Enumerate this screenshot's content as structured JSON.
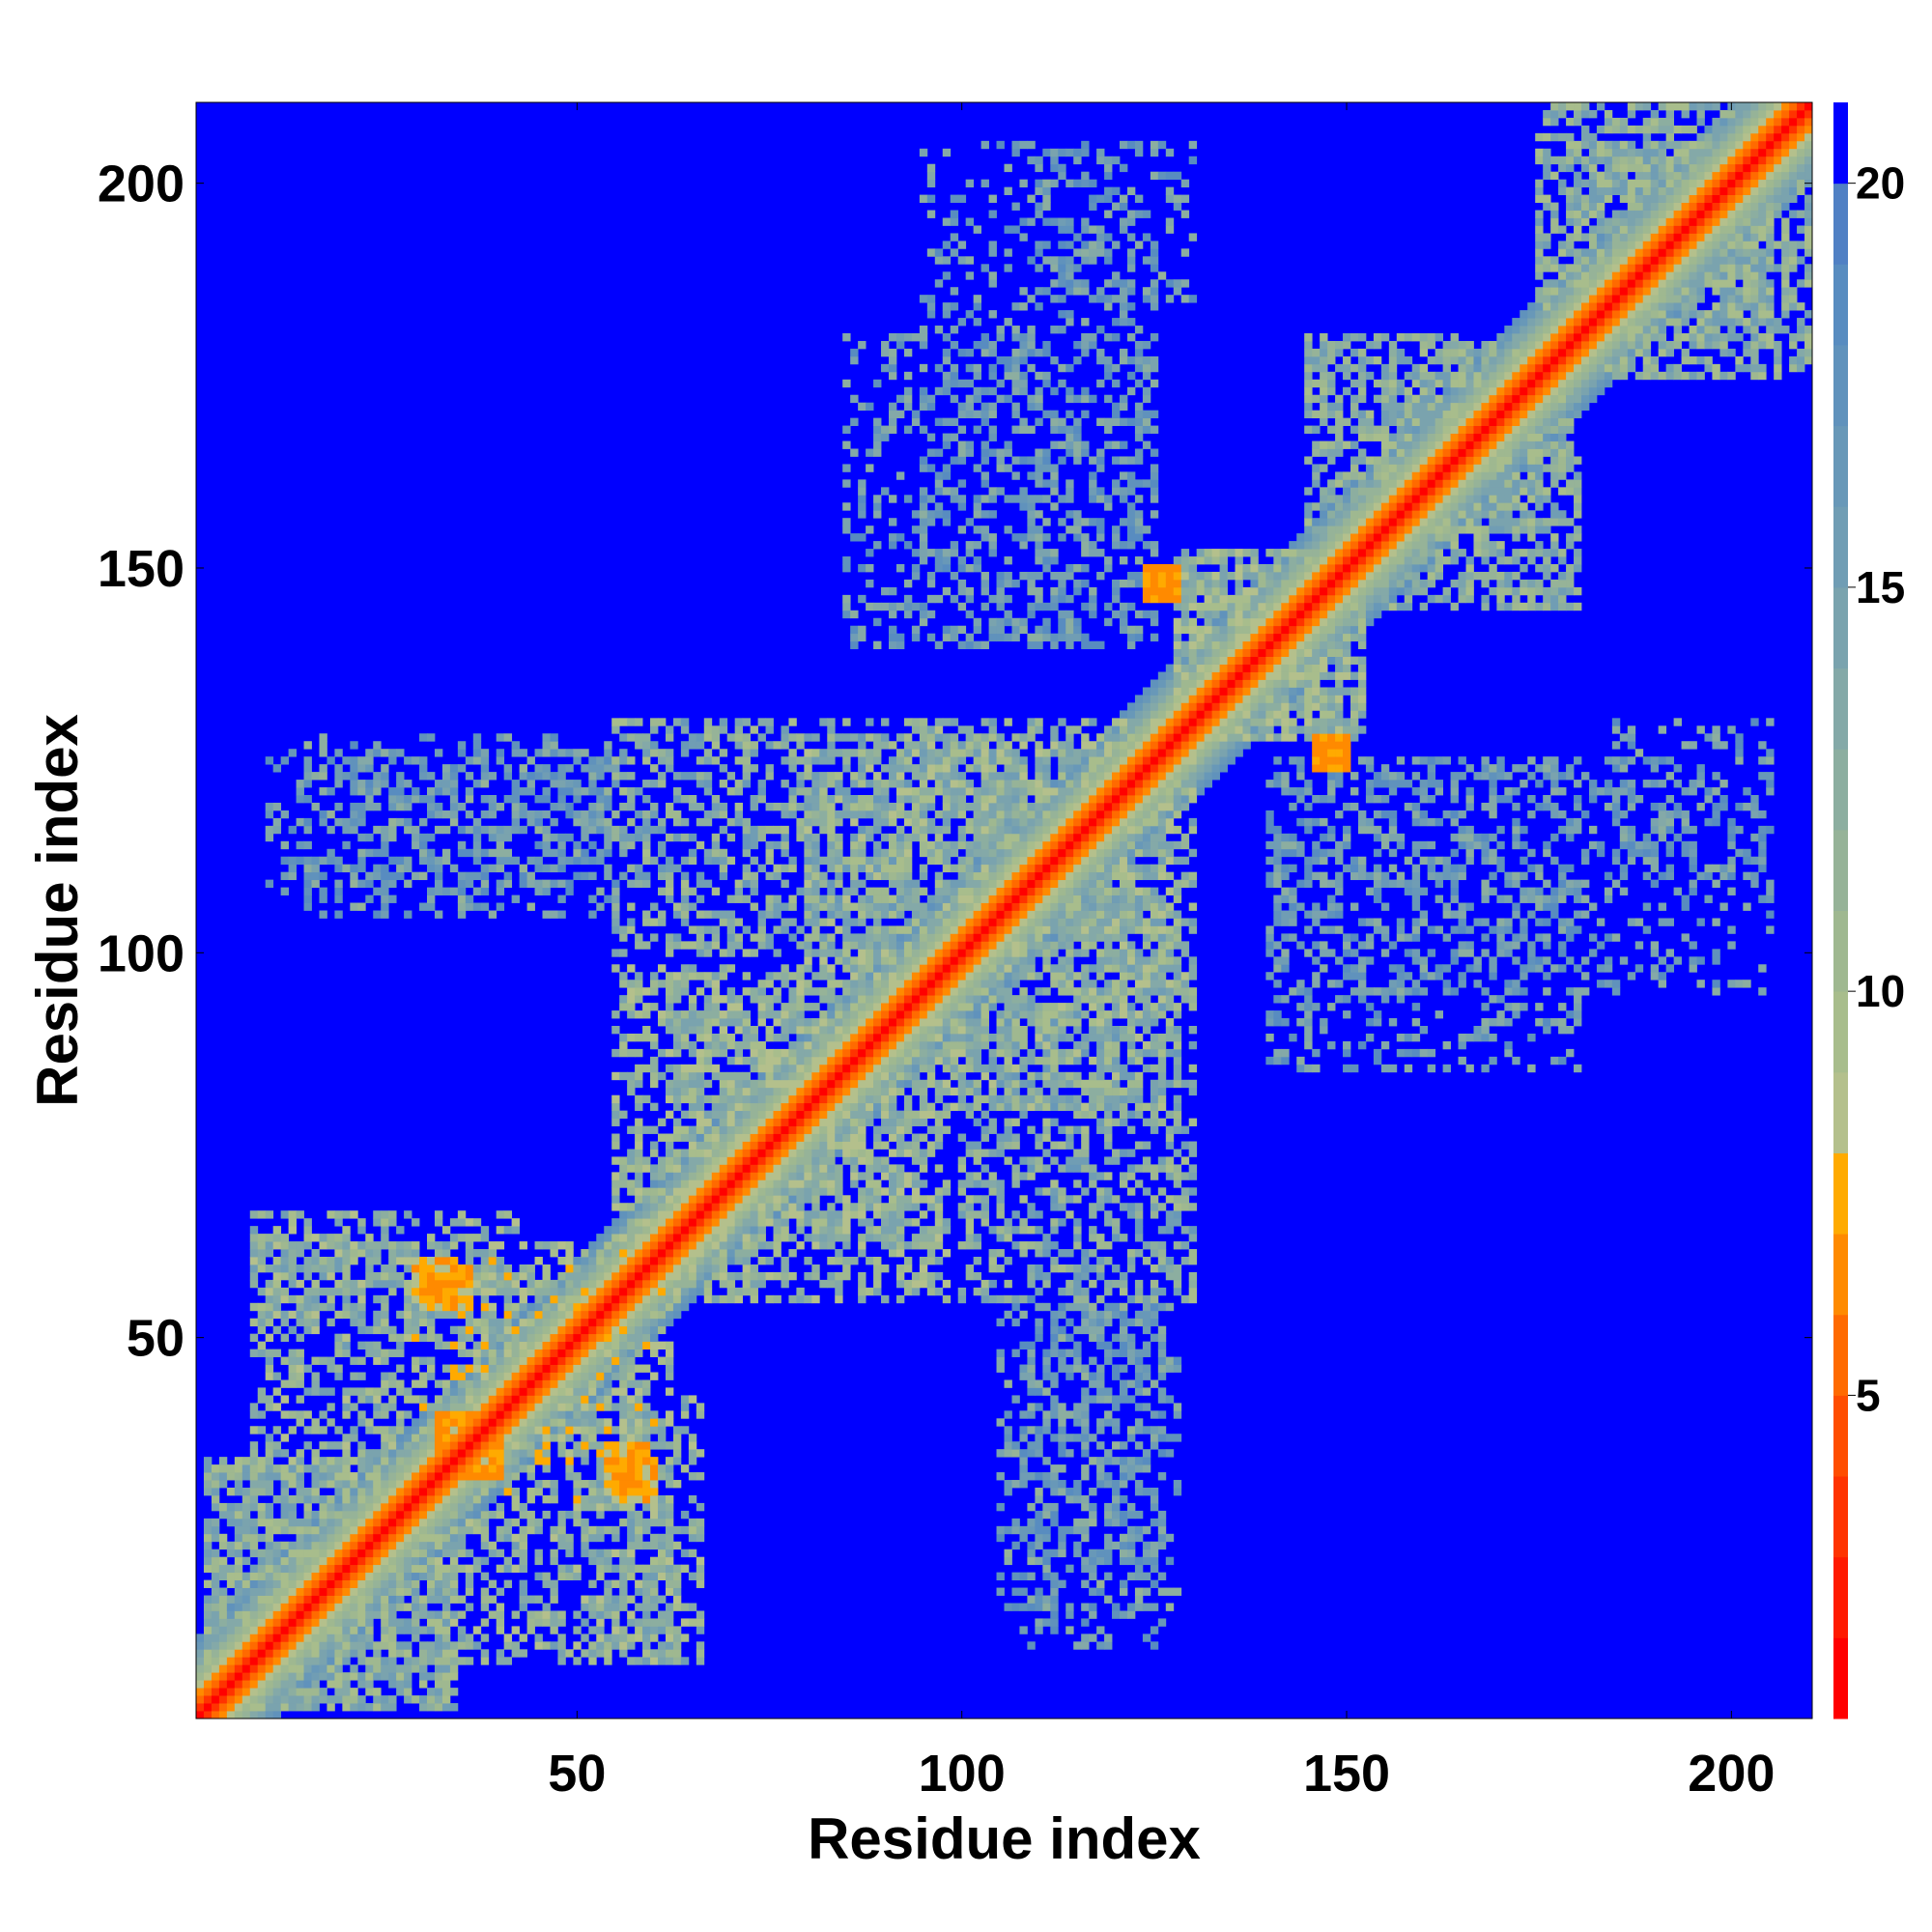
{
  "chart_data": {
    "type": "heatmap",
    "title": "",
    "xlabel": "Residue index",
    "ylabel": "Residue index",
    "n_residues": 210,
    "x_range": [
      1,
      210
    ],
    "y_range": [
      1,
      210
    ],
    "x_ticks": [
      50,
      100,
      150,
      200
    ],
    "y_ticks": [
      50,
      100,
      150,
      200
    ],
    "colorbar": {
      "range": [
        1,
        21
      ],
      "ticks": [
        5,
        10,
        15,
        20
      ],
      "levels": [
        {
          "max": 2,
          "color": "#ff0000"
        },
        {
          "max": 3,
          "color": "#ff1a00"
        },
        {
          "max": 4,
          "color": "#ff3300"
        },
        {
          "max": 5,
          "color": "#ff4d00"
        },
        {
          "max": 6,
          "color": "#ff6a00"
        },
        {
          "max": 7,
          "color": "#ff8a00"
        },
        {
          "max": 8,
          "color": "#ffaa00"
        },
        {
          "max": 9,
          "color": "#b4c08c"
        },
        {
          "max": 10,
          "color": "#a8bd8c"
        },
        {
          "max": 11,
          "color": "#9fb890"
        },
        {
          "max": 12,
          "color": "#96b398"
        },
        {
          "max": 13,
          "color": "#8caea0"
        },
        {
          "max": 14,
          "color": "#84a9a8"
        },
        {
          "max": 15,
          "color": "#7aa3ae"
        },
        {
          "max": 16,
          "color": "#709db4"
        },
        {
          "max": 17,
          "color": "#6898b8"
        },
        {
          "max": 18,
          "color": "#6092bc"
        },
        {
          "max": 19,
          "color": "#588cc0"
        },
        {
          "max": 20,
          "color": "#5080c4"
        },
        {
          "max": 21,
          "color": "#0000ff"
        }
      ]
    },
    "background_value": 21,
    "diagonal_profile": [
      [
        0,
        1.5
      ],
      [
        1,
        3.8
      ],
      [
        2,
        5.5
      ],
      [
        3,
        6.5
      ],
      [
        4,
        8.5
      ],
      [
        5,
        10.5
      ],
      [
        6,
        12.0
      ],
      [
        7,
        13.5
      ],
      [
        8,
        15.0
      ],
      [
        9,
        16.5
      ],
      [
        10,
        18.0
      ]
    ],
    "contact_regions": [
      {
        "x": [
          2,
          34
        ],
        "y": [
          2,
          34
        ],
        "value": 12.5,
        "density": 0.55
      },
      {
        "x": [
          8,
          42
        ],
        "y": [
          30,
          66
        ],
        "value": 12.0,
        "density": 0.45
      },
      {
        "x": [
          28,
          58
        ],
        "y": [
          34,
          62
        ],
        "value": 11.0,
        "density": 0.5
      },
      {
        "x": [
          52,
          62
        ],
        "y": [
          8,
          40
        ],
        "value": 12.0,
        "density": 0.5
      },
      {
        "x": [
          55,
          92
        ],
        "y": [
          62,
          98
        ],
        "value": 11.5,
        "density": 0.55
      },
      {
        "x": [
          80,
          130
        ],
        "y": [
          95,
          128
        ],
        "value": 12.0,
        "density": 0.55
      },
      {
        "x": [
          100,
          130
        ],
        "y": [
          55,
          100
        ],
        "value": 13.0,
        "density": 0.5
      },
      {
        "x": [
          128,
          150
        ],
        "y": [
          128,
          152
        ],
        "value": 11.5,
        "density": 0.6
      },
      {
        "x": [
          145,
          175
        ],
        "y": [
          155,
          180
        ],
        "value": 12.5,
        "density": 0.6
      },
      {
        "x": [
          175,
          205
        ],
        "y": [
          180,
          210
        ],
        "value": 12.5,
        "density": 0.6
      },
      {
        "x": [
          10,
          55
        ],
        "y": [
          108,
          126
        ],
        "value": 15.5,
        "density": 0.3
      },
      {
        "x": [
          140,
          205
        ],
        "y": [
          95,
          125
        ],
        "value": 15.5,
        "density": 0.2
      },
      {
        "x": [
          85,
          125
        ],
        "y": [
          140,
          180
        ],
        "value": 15.5,
        "density": 0.3
      },
      {
        "x": [
          105,
          128
        ],
        "y": [
          15,
          55
        ],
        "value": 15.0,
        "density": 0.3
      },
      {
        "x": [
          110,
          130
        ],
        "y": [
          185,
          205
        ],
        "value": 15.5,
        "density": 0.3
      }
    ],
    "orange_patches": [
      {
        "x": [
          29,
          34
        ],
        "y": [
          55,
          60
        ]
      },
      {
        "x": [
          54,
          59
        ],
        "y": [
          30,
          36
        ]
      },
      {
        "x": [
          124,
          128
        ],
        "y": [
          146,
          150
        ]
      },
      {
        "x": [
          146,
          150
        ],
        "y": [
          124,
          128
        ]
      },
      {
        "x": [
          32,
          38
        ],
        "y": [
          35,
          40
        ]
      }
    ]
  }
}
